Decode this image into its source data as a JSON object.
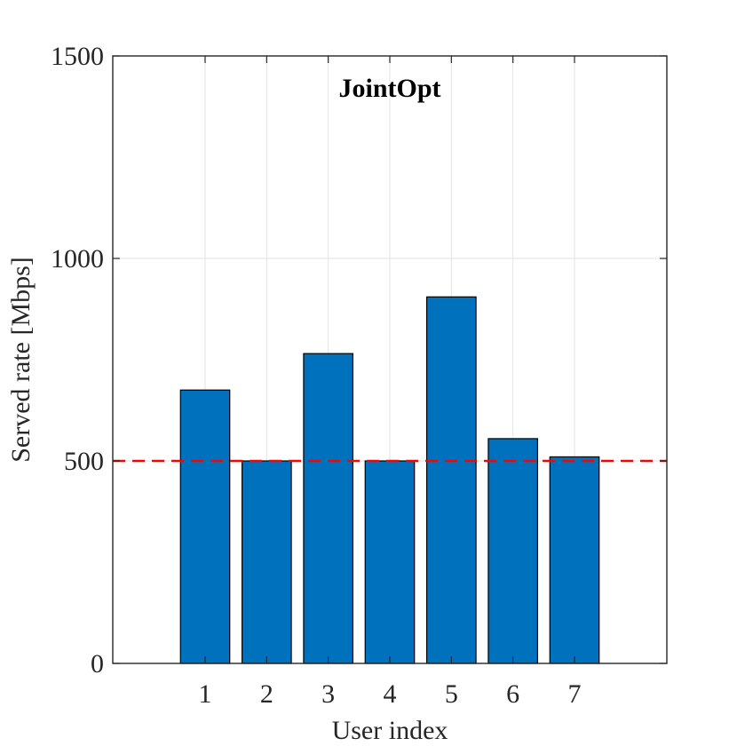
{
  "chart_data": {
    "type": "bar",
    "title": "JointOpt",
    "xlabel": "User index",
    "ylabel": "Served rate [Mbps]",
    "categories": [
      "1",
      "2",
      "3",
      "4",
      "5",
      "6",
      "7"
    ],
    "x": [
      1,
      2,
      3,
      4,
      5,
      6,
      7
    ],
    "values": [
      675,
      500,
      765,
      500,
      905,
      555,
      510
    ],
    "xlim": [
      -0.5,
      8.5
    ],
    "ylim": [
      0,
      1500
    ],
    "yticks": [
      0,
      500,
      1000,
      1500
    ],
    "ytick_labels": [
      "0",
      "500",
      "1000",
      "1500"
    ],
    "grid": true,
    "reference_line": {
      "y": 500,
      "style": "dashed",
      "color": "#ff0000"
    },
    "bar_color": "#0072bd"
  }
}
